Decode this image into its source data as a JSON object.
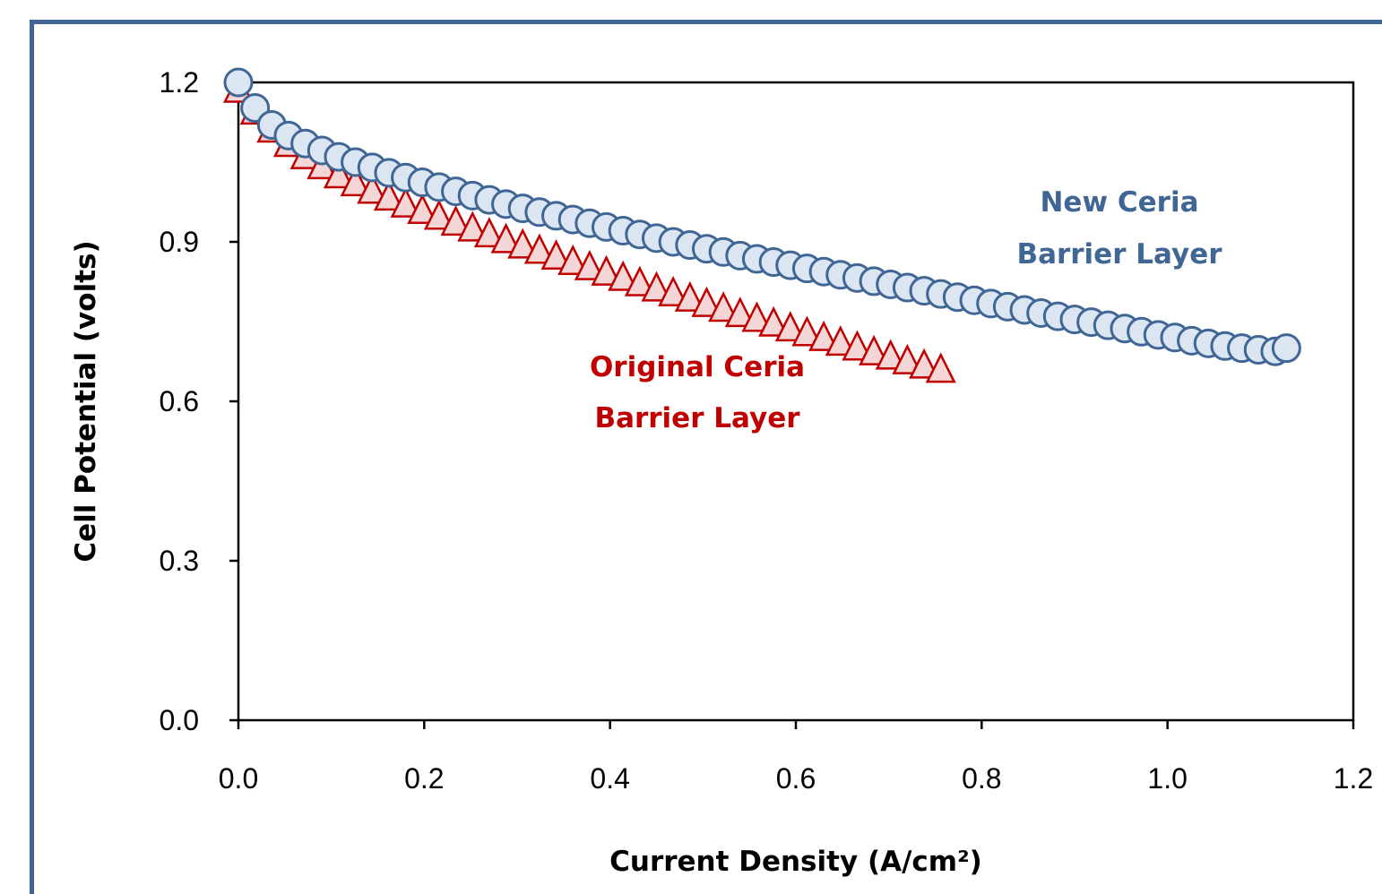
{
  "colors": {
    "frame": "#3f6694",
    "new_stroke": "#3f6694",
    "new_fill": "#dce6f2",
    "orig_stroke": "#c00000",
    "orig_fill": "#f4d6d6",
    "new_label": "#3f6694",
    "orig_label": "#c00000"
  },
  "chart_data": {
    "type": "scatter",
    "xlabel": "Current Density (A/cm²)",
    "ylabel": "Cell Potential (volts)",
    "xlim": [
      0,
      1.2
    ],
    "ylim": [
      0,
      1.2
    ],
    "xticks": [
      "0.0",
      "0.2",
      "0.4",
      "0.6",
      "0.8",
      "1.0",
      "1.2"
    ],
    "yticks": [
      "0.0",
      "0.3",
      "0.6",
      "0.9",
      "1.2"
    ],
    "grid": false,
    "legend": "none",
    "annotations": [
      {
        "series": "new",
        "lines": [
          "New Ceria",
          "Barrier Layer"
        ]
      },
      {
        "series": "original",
        "lines": [
          "Original Ceria",
          "Barrier Layer"
        ]
      }
    ],
    "series": [
      {
        "key": "original",
        "marker": "triangle",
        "x": [
          0.0,
          0.018,
          0.036,
          0.054,
          0.072,
          0.09,
          0.108,
          0.126,
          0.144,
          0.162,
          0.18,
          0.198,
          0.216,
          0.234,
          0.252,
          0.27,
          0.288,
          0.306,
          0.324,
          0.342,
          0.36,
          0.378,
          0.396,
          0.414,
          0.432,
          0.45,
          0.468,
          0.486,
          0.504,
          0.522,
          0.54,
          0.558,
          0.576,
          0.594,
          0.612,
          0.63,
          0.648,
          0.666,
          0.684,
          0.702,
          0.72,
          0.738,
          0.756
        ],
        "y": [
          1.183,
          1.142,
          1.108,
          1.081,
          1.058,
          1.039,
          1.022,
          1.007,
          0.993,
          0.98,
          0.967,
          0.955,
          0.944,
          0.933,
          0.922,
          0.911,
          0.9,
          0.89,
          0.88,
          0.869,
          0.859,
          0.849,
          0.839,
          0.829,
          0.819,
          0.809,
          0.8,
          0.79,
          0.78,
          0.771,
          0.761,
          0.752,
          0.743,
          0.734,
          0.725,
          0.716,
          0.707,
          0.698,
          0.689,
          0.681,
          0.672,
          0.664,
          0.656
        ]
      },
      {
        "key": "new",
        "marker": "circle",
        "x": [
          0.0,
          0.018,
          0.036,
          0.054,
          0.072,
          0.09,
          0.108,
          0.126,
          0.144,
          0.162,
          0.18,
          0.198,
          0.216,
          0.234,
          0.252,
          0.27,
          0.288,
          0.306,
          0.324,
          0.342,
          0.36,
          0.378,
          0.396,
          0.414,
          0.432,
          0.45,
          0.468,
          0.486,
          0.504,
          0.522,
          0.54,
          0.558,
          0.576,
          0.594,
          0.612,
          0.63,
          0.648,
          0.666,
          0.684,
          0.702,
          0.72,
          0.738,
          0.756,
          0.774,
          0.792,
          0.81,
          0.828,
          0.846,
          0.864,
          0.882,
          0.9,
          0.918,
          0.936,
          0.954,
          0.972,
          0.99,
          1.008,
          1.026,
          1.044,
          1.062,
          1.08,
          1.098,
          1.116,
          1.128
        ],
        "y": [
          1.2,
          1.152,
          1.12,
          1.1,
          1.085,
          1.072,
          1.06,
          1.05,
          1.04,
          1.03,
          1.021,
          1.012,
          1.003,
          0.995,
          0.987,
          0.979,
          0.971,
          0.963,
          0.956,
          0.949,
          0.942,
          0.935,
          0.928,
          0.921,
          0.914,
          0.907,
          0.9,
          0.894,
          0.887,
          0.881,
          0.874,
          0.868,
          0.862,
          0.856,
          0.85,
          0.844,
          0.838,
          0.832,
          0.826,
          0.82,
          0.814,
          0.808,
          0.802,
          0.796,
          0.79,
          0.784,
          0.778,
          0.772,
          0.766,
          0.76,
          0.754,
          0.749,
          0.743,
          0.737,
          0.731,
          0.725,
          0.72,
          0.714,
          0.709,
          0.704,
          0.7,
          0.697,
          0.694,
          0.7
        ]
      }
    ]
  }
}
